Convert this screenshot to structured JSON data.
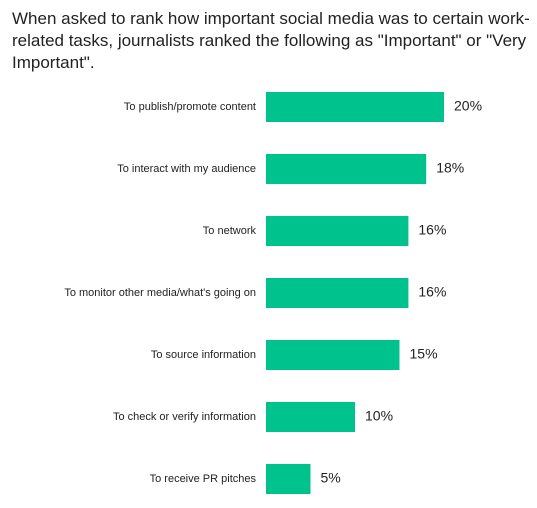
{
  "chart_data": {
    "type": "bar",
    "orientation": "horizontal",
    "title": "When asked to rank how important social media was to certain work-related tasks, journalists ranked the following as \"Important\" or \"Very Important\".",
    "categories": [
      "To publish/promote content",
      "To interact with my audience",
      "To network",
      "To monitor other media/what's going on",
      "To source information",
      "To check or verify information",
      "To receive PR pitches"
    ],
    "values": [
      20,
      18,
      16,
      16,
      15,
      10,
      5
    ],
    "value_labels": [
      "20%",
      "18%",
      "16%",
      "16%",
      "15%",
      "10%",
      "5%"
    ],
    "color": "#00c28c"
  }
}
